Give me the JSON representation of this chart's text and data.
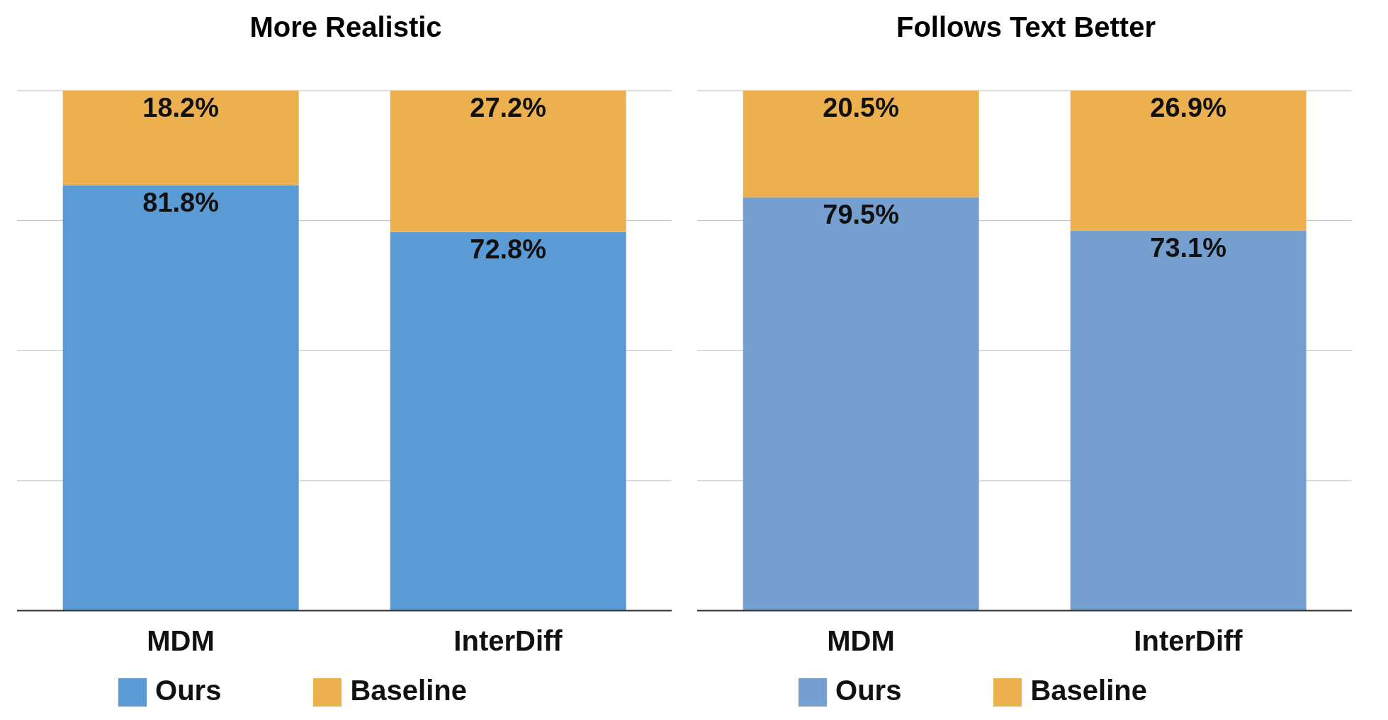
{
  "chart_data": [
    {
      "type": "bar",
      "title": "More Realistic",
      "categories": [
        "MDM",
        "InterDiff"
      ],
      "stacked": true,
      "ylim": [
        0,
        100
      ],
      "yticks": [
        {
          "value": 0,
          "label": null
        },
        {
          "value": 25,
          "label": null
        },
        {
          "value": 50,
          "label": null
        },
        {
          "value": 75,
          "label": null
        },
        {
          "value": 100,
          "label": null
        }
      ],
      "grid": "y",
      "tick_labels": "x",
      "legend": "bottom",
      "series": [
        {
          "name": "Ours",
          "color": "#5b9bd5",
          "values": [
            81.8,
            72.8
          ],
          "value_labels": [
            "81.8%",
            "72.8%"
          ]
        },
        {
          "name": "Baseline",
          "color": "#edb04f",
          "values": [
            18.2,
            27.2
          ],
          "value_labels": [
            "18.2%",
            "27.2%"
          ]
        }
      ]
    },
    {
      "type": "bar",
      "title": "Follows Text Better",
      "categories": [
        "MDM",
        "InterDiff"
      ],
      "stacked": true,
      "ylim": [
        0,
        100
      ],
      "yticks": [
        {
          "value": 0,
          "label": null
        },
        {
          "value": 25,
          "label": null
        },
        {
          "value": 50,
          "label": null
        },
        {
          "value": 75,
          "label": null
        },
        {
          "value": 100,
          "label": null
        }
      ],
      "grid": "y",
      "tick_labels": "x",
      "legend": "bottom",
      "series": [
        {
          "name": "Ours",
          "color": "#759fcf",
          "values": [
            79.5,
            73.1
          ],
          "value_labels": [
            "79.5%",
            "73.1%"
          ]
        },
        {
          "name": "Baseline",
          "color": "#edb04f",
          "values": [
            20.5,
            26.9
          ],
          "value_labels": [
            "20.5%",
            "26.9%"
          ]
        }
      ]
    }
  ]
}
